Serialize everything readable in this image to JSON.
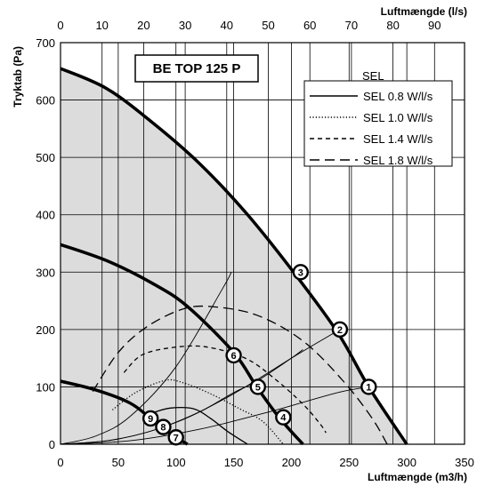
{
  "chart_data": {
    "type": "line",
    "model_label": "BE TOP 125 P",
    "xlabel": "Luftmængde (m3/h)",
    "x2label": "Luftmængde (l/s)",
    "ylabel": "Tryktab (Pa)",
    "xlim": [
      0,
      350
    ],
    "ylim": [
      0,
      700
    ],
    "x2lim": [
      0,
      97.22
    ],
    "x_ticks": [
      0,
      50,
      100,
      150,
      200,
      250,
      300,
      350
    ],
    "x2_ticks": [
      0,
      10,
      20,
      30,
      40,
      50,
      60,
      70,
      80,
      90
    ],
    "y_ticks": [
      0,
      100,
      200,
      300,
      400,
      500,
      600,
      700
    ],
    "grid": true,
    "legend": {
      "title": "SEL",
      "position": "top-right",
      "entries": [
        {
          "label": "SEL 0.8 W/l/s",
          "style": "solid"
        },
        {
          "label": "SEL 1.0 W/l/s",
          "style": "dotted"
        },
        {
          "label": "SEL 1.4 W/l/s",
          "style": "dashed"
        },
        {
          "label": "SEL 1.8 W/l/s",
          "style": "longdash"
        }
      ]
    },
    "fan_curves": [
      {
        "points": [
          [
            0,
            655
          ],
          [
            40,
            620
          ],
          [
            80,
            560
          ],
          [
            120,
            490
          ],
          [
            160,
            405
          ],
          [
            200,
            305
          ],
          [
            240,
            195
          ],
          [
            267,
            100
          ],
          [
            300,
            0
          ]
        ]
      },
      {
        "points": [
          [
            0,
            348
          ],
          [
            40,
            320
          ],
          [
            80,
            280
          ],
          [
            110,
            240
          ],
          [
            150,
            160
          ],
          [
            170,
            100
          ],
          [
            190,
            45
          ],
          [
            210,
            0
          ]
        ]
      },
      {
        "points": [
          [
            0,
            110
          ],
          [
            30,
            95
          ],
          [
            60,
            72
          ],
          [
            78,
            45
          ],
          [
            90,
            25
          ],
          [
            110,
            0
          ]
        ]
      }
    ],
    "system_curves": [
      {
        "points": [
          [
            0,
            0
          ],
          [
            30,
            14
          ],
          [
            60,
            48
          ],
          [
            100,
            135
          ],
          [
            140,
            270
          ],
          [
            148,
            300
          ]
        ]
      },
      {
        "points": [
          [
            0,
            0
          ],
          [
            50,
            9
          ],
          [
            100,
            38
          ],
          [
            150,
            88
          ],
          [
            200,
            150
          ],
          [
            242,
            200
          ]
        ]
      },
      {
        "points": [
          [
            0,
            0
          ],
          [
            60,
            6
          ],
          [
            120,
            26
          ],
          [
            180,
            56
          ],
          [
            240,
            90
          ],
          [
            268,
            100
          ]
        ]
      },
      {
        "points": [
          [
            0,
            0
          ],
          [
            40,
            6
          ],
          [
            80,
            24
          ],
          [
            120,
            56
          ],
          [
            150,
            90
          ],
          [
            170,
            110
          ],
          [
            200,
            150
          ],
          [
            210,
            165
          ]
        ]
      }
    ],
    "sel_curves": [
      {
        "style": "solid",
        "points": [
          [
            80,
            55
          ],
          [
            95,
            63
          ],
          [
            115,
            62
          ],
          [
            130,
            45
          ],
          [
            145,
            22
          ],
          [
            162,
            0
          ]
        ]
      },
      {
        "style": "dotted",
        "points": [
          [
            45,
            60
          ],
          [
            65,
            90
          ],
          [
            90,
            111
          ],
          [
            105,
            108
          ],
          [
            130,
            88
          ],
          [
            155,
            62
          ],
          [
            175,
            40
          ],
          [
            193,
            0
          ]
        ]
      },
      {
        "style": "dashed",
        "points": [
          [
            55,
            125
          ],
          [
            70,
            155
          ],
          [
            95,
            168
          ],
          [
            125,
            170
          ],
          [
            160,
            150
          ],
          [
            185,
            115
          ],
          [
            210,
            70
          ],
          [
            225,
            35
          ],
          [
            230,
            20
          ]
        ]
      },
      {
        "style": "longdash",
        "points": [
          [
            28,
            92
          ],
          [
            50,
            160
          ],
          [
            75,
            205
          ],
          [
            105,
            235
          ],
          [
            130,
            240
          ],
          [
            170,
            225
          ],
          [
            210,
            180
          ],
          [
            245,
            110
          ],
          [
            270,
            45
          ],
          [
            283,
            0
          ]
        ]
      }
    ],
    "markers": [
      {
        "label": "1",
        "x": 267,
        "y": 100
      },
      {
        "label": "2",
        "x": 242,
        "y": 200
      },
      {
        "label": "3",
        "x": 208,
        "y": 300
      },
      {
        "label": "4",
        "x": 193,
        "y": 47
      },
      {
        "label": "5",
        "x": 171,
        "y": 100
      },
      {
        "label": "6",
        "x": 150,
        "y": 155
      },
      {
        "label": "7",
        "x": 100,
        "y": 12
      },
      {
        "label": "8",
        "x": 89,
        "y": 30
      },
      {
        "label": "9",
        "x": 78,
        "y": 45
      }
    ],
    "colors": {
      "fill": "#dcdcdc",
      "grid": "#000000",
      "curve": "#000000"
    }
  }
}
